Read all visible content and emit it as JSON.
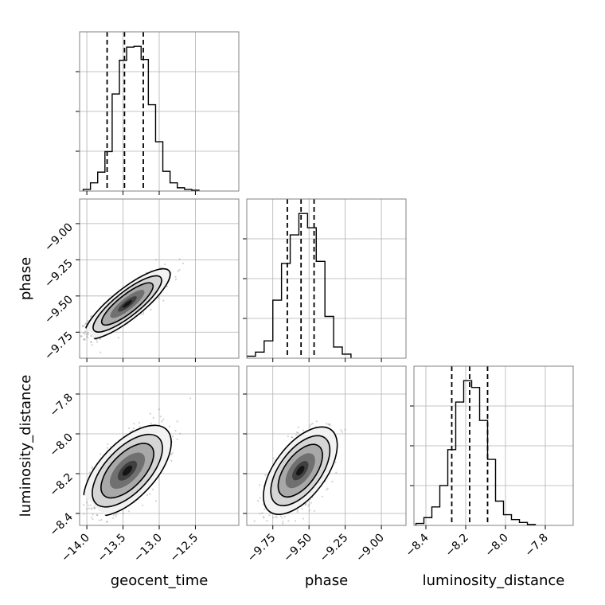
{
  "chart_data": {
    "type": "corner",
    "parameters": [
      "geocent_time",
      "phase",
      "luminosity_distance"
    ],
    "axes": {
      "geocent_time": {
        "label": "geocent_time",
        "range": [
          -14.1,
          -11.9
        ],
        "ticks": [
          -14.0,
          -13.5,
          -13.0,
          -12.5
        ],
        "tick_labels": [
          "−14.0",
          "−13.5",
          "−13.0",
          "−12.5"
        ],
        "quantiles": [
          -13.72,
          -13.48,
          -13.22
        ]
      },
      "phase": {
        "label": "phase",
        "range": [
          -9.93,
          -8.83
        ],
        "ticks": [
          -9.75,
          -9.5,
          -9.25,
          -9.0
        ],
        "tick_labels": [
          "−9.75",
          "−9.50",
          "−9.25",
          "−9.00"
        ],
        "quantiles": [
          -9.65,
          -9.555,
          -9.465
        ]
      },
      "luminosity_distance": {
        "label": "luminosity_distance",
        "range": [
          -8.46,
          -7.66
        ],
        "ticks": [
          -8.4,
          -8.2,
          -8.0,
          -7.8
        ],
        "tick_labels": [
          "−8.4",
          "−8.2",
          "−8.0",
          "−7.8"
        ],
        "quantiles": [
          -8.27,
          -8.18,
          -8.09
        ]
      }
    },
    "histograms": {
      "geocent_time": {
        "bin_edges": [
          -14.05,
          -13.95,
          -13.85,
          -13.75,
          -13.65,
          -13.55,
          -13.45,
          -13.35,
          -13.25,
          -13.15,
          -13.05,
          -12.95,
          -12.85,
          -12.75,
          -12.65,
          -12.55,
          -12.45
        ],
        "counts": [
          2,
          10,
          23,
          48,
          118,
          159,
          175,
          176,
          160,
          105,
          60,
          24,
          10,
          4,
          2,
          1
        ]
      },
      "phase": {
        "bin_edges": [
          -9.93,
          -9.87,
          -9.81,
          -9.75,
          -9.69,
          -9.63,
          -9.57,
          -9.51,
          -9.45,
          -9.39,
          -9.33,
          -9.27,
          -9.21
        ],
        "counts": [
          2,
          6,
          17,
          57,
          93,
          121,
          142,
          128,
          95,
          41,
          11,
          4
        ]
      },
      "luminosity_distance": {
        "bin_edges": [
          -8.45,
          -8.41,
          -8.37,
          -8.33,
          -8.29,
          -8.25,
          -8.21,
          -8.17,
          -8.13,
          -8.09,
          -8.05,
          -8.01,
          -7.97,
          -7.93,
          -7.89,
          -7.85
        ],
        "counts": [
          2,
          8,
          19,
          41,
          78,
          127,
          149,
          142,
          108,
          68,
          25,
          11,
          6,
          3,
          1
        ]
      }
    },
    "correlations": {
      "phase|geocent_time": 0.85,
      "luminosity_distance|geocent_time": 0.62,
      "luminosity_distance|phase": 0.6
    },
    "density_peaks": {
      "phase|geocent_time": [
        -13.44,
        -9.555
      ],
      "luminosity_distance|geocent_time": [
        -13.44,
        -8.185
      ],
      "luminosity_distance|phase": [
        -9.56,
        -8.185
      ]
    },
    "spreads": {
      "geocent_time": 0.24,
      "phase": 0.095,
      "luminosity_distance": 0.092
    },
    "grid": true,
    "colors": {
      "line": "#000000",
      "scatter": "#7f7f7f",
      "grid": "#b0b0b0"
    }
  }
}
